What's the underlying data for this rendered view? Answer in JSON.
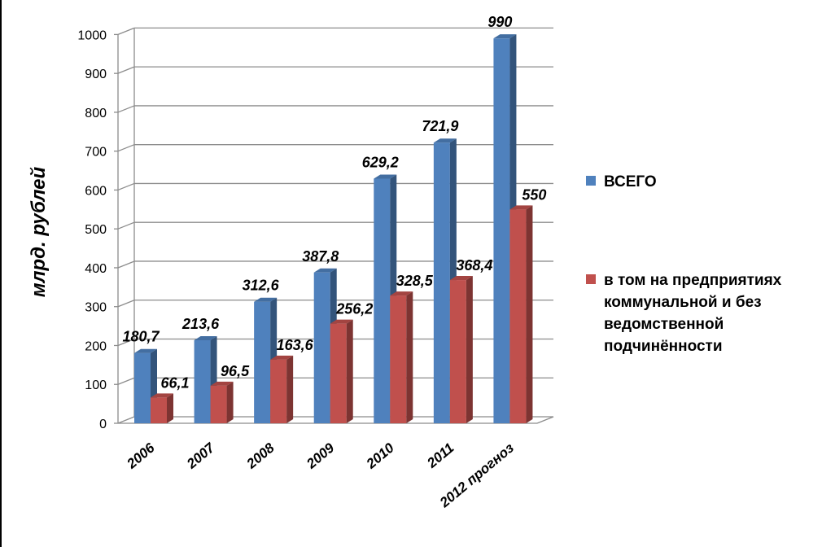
{
  "chart_data": {
    "type": "bar",
    "ylabel": "млрд. рублей",
    "ylim": [
      0,
      1000
    ],
    "yticks": [
      0,
      100,
      200,
      300,
      400,
      500,
      600,
      700,
      800,
      900,
      1000
    ],
    "ytick_labels": [
      "0",
      "100",
      "200",
      "300",
      "400",
      "500",
      "600",
      "700",
      "800",
      "900",
      "1000"
    ],
    "categories": [
      "2006",
      "2007",
      "2008",
      "2009",
      "2010",
      "2011",
      "2012 прогноз"
    ],
    "series": [
      {
        "name": "ВСЕГО",
        "values": [
          180.7,
          213.6,
          312.6,
          387.8,
          629.2,
          721.9,
          990
        ],
        "labels": [
          "180,7",
          "213,6",
          "312,6",
          "387,8",
          "629,2",
          "721,9",
          "990"
        ],
        "color": "#4F81BD"
      },
      {
        "name": "в том на предприятиях коммунальной и без ведомственной подчинённости",
        "values": [
          66.1,
          96.5,
          163.6,
          256.2,
          328.5,
          368.4,
          550
        ],
        "labels": [
          "66,1",
          "96,5",
          "163,6",
          "256,2",
          "328,5",
          "368,4",
          "550"
        ],
        "color": "#C0504D"
      }
    ],
    "legend_position": "right",
    "grid": true
  },
  "legend": {
    "items": [
      {
        "label": "ВСЕГО",
        "color": "#4F81BD"
      },
      {
        "label": "в том на предприятиях коммунальной и без ведомственной подчинённости",
        "color": "#C0504D"
      }
    ]
  }
}
